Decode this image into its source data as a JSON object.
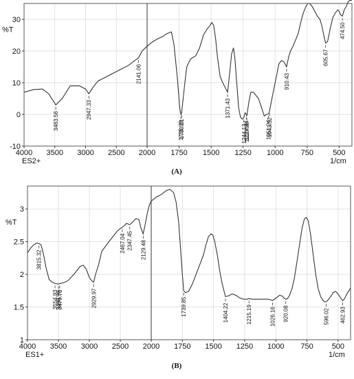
{
  "chart_data": [
    {
      "type": "line",
      "panel_label": "(A)",
      "sample_label": "ES2+",
      "xlabel": "1/cm",
      "ylabel": "%T",
      "xlim": [
        4000,
        400
      ],
      "ylim": [
        -10,
        35
      ],
      "x_ticks": [
        "4000",
        "3500",
        "3000",
        "2500",
        "2000",
        "1750",
        "1500",
        "1250",
        "1000",
        "750",
        "500"
      ],
      "y_ticks": [
        "-10",
        "0",
        "10",
        "20",
        "30"
      ],
      "x_tick_values": [
        4000,
        3500,
        3000,
        2500,
        2000,
        1750,
        1500,
        1250,
        1000,
        750,
        500
      ],
      "y_tick_values": [
        -10,
        0,
        10,
        20,
        30
      ],
      "grid": true,
      "axis_break_at": 2000,
      "series": [
        {
          "x": [
            4000,
            3850,
            3700,
            3600,
            3483.56,
            3380,
            3250,
            3100,
            3000,
            2947.33,
            2880,
            2800,
            2700,
            2600,
            2500,
            2400,
            2300,
            2200,
            2141.06,
            2080,
            2000,
            1960,
            1920,
            1880,
            1845,
            1810,
            1790,
            1765,
            1745,
            1735.99,
            1730.21,
            1718,
            1705,
            1690,
            1660,
            1620,
            1590,
            1560,
            1530,
            1510,
            1495,
            1480,
            1465,
            1450,
            1430,
            1410,
            1390,
            1371.43,
            1355,
            1340,
            1325,
            1315,
            1300,
            1285,
            1270,
            1255,
            1244.13,
            1235,
            1224.84,
            1220.98,
            1205,
            1190,
            1170,
            1150,
            1130,
            1105,
            1085,
            1065,
            1051.24,
            1043.52,
            1030,
            1010,
            990,
            970,
            950,
            930,
            910.43,
            895,
            880,
            860,
            840,
            820,
            800,
            780,
            760,
            745,
            730,
            710,
            690,
            670,
            650,
            635,
            620,
            605.67,
            590,
            570,
            550,
            530,
            510,
            500,
            490,
            474.5,
            460,
            445,
            430,
            415,
            400
          ],
          "y": [
            7,
            7.8,
            8,
            6.5,
            3,
            5,
            9,
            9,
            8,
            6.5,
            8.5,
            10.5,
            11.5,
            12.5,
            13.5,
            14.5,
            15.5,
            17,
            17.8,
            20,
            21.5,
            22.8,
            23.8,
            24.5,
            25.5,
            26,
            22,
            12,
            2,
            0,
            0.5,
            5,
            10,
            15,
            17.5,
            18.5,
            21,
            25,
            27,
            28,
            29,
            28,
            24,
            18,
            12,
            10,
            8.5,
            7,
            13,
            19,
            21,
            18,
            10,
            2,
            -1,
            -1.5,
            -1,
            0.5,
            0,
            -0.5,
            4,
            7,
            7,
            6,
            5,
            2,
            -0.5,
            0,
            0.2,
            1,
            4,
            8,
            12,
            16,
            17,
            16.5,
            15,
            18,
            20,
            21.5,
            23.5,
            25.5,
            29,
            32,
            34,
            35,
            35,
            34,
            32.5,
            31,
            30,
            28,
            25,
            22.5,
            23,
            27,
            30.5,
            32,
            33,
            32.5,
            31.5,
            31,
            33,
            34,
            35.5,
            36,
            36
          ]
        }
      ],
      "peak_labels": [
        "3483.56",
        "2947.33",
        "2141.06",
        "1735.99",
        "1730.21",
        "1371.43",
        "1244.13",
        "1224.84",
        "1220.98",
        "1051.24",
        "1043.52",
        "910.43",
        "605.67",
        "474.50"
      ],
      "peak_x": [
        3483.56,
        2947.33,
        2141.06,
        1735.99,
        1730.21,
        1371.43,
        1244.13,
        1224.84,
        1220.98,
        1051.24,
        1043.52,
        910.43,
        605.67,
        474.5
      ]
    },
    {
      "type": "line",
      "panel_label": "(B)",
      "sample_label": "ES1+",
      "xlabel": "1/cm",
      "ylabel": "%T",
      "xlim": [
        4000,
        400
      ],
      "ylim": [
        1,
        3.35
      ],
      "x_ticks": [
        "4000",
        "3500",
        "3000",
        "2500",
        "2000",
        "1750",
        "1500",
        "1250",
        "1000",
        "750",
        "500"
      ],
      "y_ticks": [
        "1",
        "1.5",
        "2",
        "2.5",
        "3"
      ],
      "x_tick_values": [
        4000,
        3500,
        3000,
        2500,
        2000,
        1750,
        1500,
        1250,
        1000,
        750,
        500
      ],
      "y_tick_values": [
        1,
        1.5,
        2,
        2.5,
        3
      ],
      "grid": true,
      "axis_break_at": 2000,
      "series": [
        {
          "x": [
            4000,
            3950,
            3900,
            3850,
            3815.32,
            3780,
            3740,
            3700,
            3650,
            3600,
            3554.93,
            3498.99,
            3479.7,
            3420,
            3350,
            3300,
            3250,
            3200,
            3150,
            3100,
            3050,
            3000,
            2960,
            2929.97,
            2900,
            2850,
            2800,
            2700,
            2600,
            2550,
            2500,
            2467.04,
            2430,
            2400,
            2347.45,
            2300,
            2250,
            2200,
            2170,
            2129.48,
            2100,
            2060,
            2030,
            2000,
            1960,
            1920,
            1880,
            1850,
            1820,
            1800,
            1780,
            1765,
            1750,
            1739.85,
            1725,
            1700,
            1670,
            1640,
            1610,
            1580,
            1560,
            1540,
            1520,
            1505,
            1490,
            1470,
            1450,
            1430,
            1404.22,
            1380,
            1350,
            1320,
            1290,
            1260,
            1230,
            1215.19,
            1190,
            1150,
            1100,
            1060,
            1040,
            1026.16,
            1010,
            990,
            970,
            950,
            935,
            920.08,
            905,
            890,
            870,
            850,
            830,
            810,
            790,
            770,
            755,
            740,
            720,
            700,
            680,
            660,
            640,
            620,
            610,
            596.02,
            580,
            560,
            540,
            520,
            500,
            480,
            462.93,
            450,
            430,
            410,
            400
          ],
          "y": [
            2.33,
            2.4,
            2.45,
            2.48,
            2.47,
            2.45,
            2.3,
            2.1,
            1.92,
            1.88,
            1.86,
            1.85,
            1.86,
            1.87,
            1.9,
            1.95,
            2.0,
            2.06,
            2.12,
            2.14,
            2.08,
            1.95,
            1.9,
            1.88,
            2.0,
            2.15,
            2.35,
            2.48,
            2.6,
            2.66,
            2.7,
            2.72,
            2.75,
            2.78,
            2.76,
            2.8,
            2.85,
            2.84,
            2.72,
            2.62,
            2.75,
            2.95,
            3.06,
            3.12,
            3.18,
            3.22,
            3.28,
            3.3,
            3.25,
            3.1,
            2.8,
            2.4,
            2.0,
            1.75,
            1.72,
            1.74,
            1.85,
            2.0,
            2.15,
            2.3,
            2.46,
            2.58,
            2.62,
            2.6,
            2.5,
            2.3,
            2.05,
            1.85,
            1.66,
            1.67,
            1.7,
            1.68,
            1.64,
            1.62,
            1.62,
            1.63,
            1.62,
            1.62,
            1.62,
            1.62,
            1.61,
            1.6,
            1.62,
            1.65,
            1.68,
            1.67,
            1.64,
            1.62,
            1.63,
            1.68,
            1.78,
            1.95,
            2.2,
            2.45,
            2.7,
            2.85,
            2.87,
            2.82,
            2.6,
            2.3,
            2.0,
            1.78,
            1.66,
            1.6,
            1.58,
            1.58,
            1.61,
            1.66,
            1.72,
            1.74,
            1.7,
            1.64,
            1.6,
            1.62,
            1.7,
            1.76,
            1.79
          ]
        }
      ],
      "peak_labels": [
        "3815.32",
        "3554.93",
        "3498.99",
        "3479.70",
        "2929.97",
        "2467.04",
        "2347.45",
        "2129.48",
        "1739.85",
        "1404.22",
        "1215.19",
        "1026.16",
        "920.08",
        "596.02",
        "462.93"
      ],
      "peak_x": [
        3815.32,
        3554.93,
        3498.99,
        3479.7,
        2929.97,
        2467.04,
        2347.45,
        2129.48,
        1739.85,
        1404.22,
        1215.19,
        1026.16,
        920.08,
        596.02,
        462.93
      ]
    }
  ]
}
